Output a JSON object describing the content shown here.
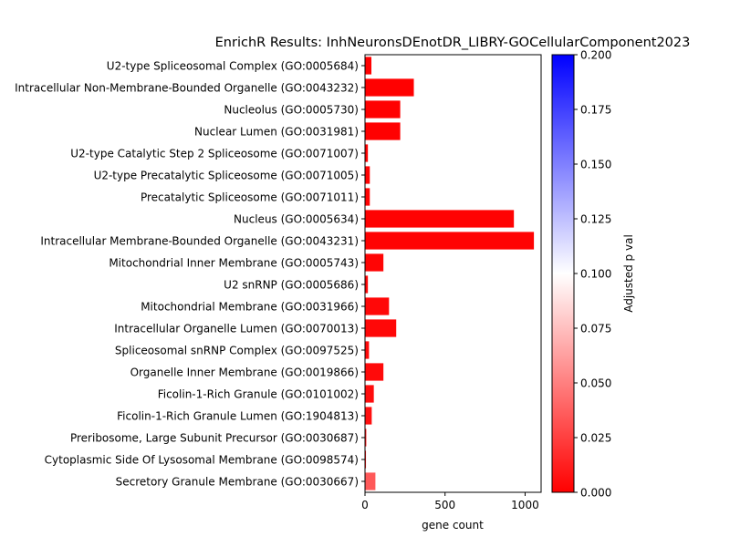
{
  "chart_data": {
    "type": "bar",
    "orientation": "horizontal",
    "title": "EnrichR Results: InhNeuronsDEnotDR_LIBRY-GOCellularComponent2023",
    "xlabel": "gene count",
    "ylabel": "",
    "xlim": [
      0,
      1100
    ],
    "xticks": [
      "0",
      "500",
      "1000"
    ],
    "grid": false,
    "categories": [
      "U2-type Spliceosomal Complex (GO:0005684)",
      "Intracellular Non-Membrane-Bounded Organelle (GO:0043232)",
      "Nucleolus (GO:0005730)",
      "Nuclear Lumen (GO:0031981)",
      "U2-type Catalytic Step 2 Spliceosome (GO:0071007)",
      "U2-type Precatalytic Spliceosome (GO:0071005)",
      "Precatalytic Spliceosome (GO:0071011)",
      "Nucleus (GO:0005634)",
      "Intracellular Membrane-Bounded Organelle (GO:0043231)",
      "Mitochondrial Inner Membrane (GO:0005743)",
      "U2 snRNP (GO:0005686)",
      "Mitochondrial Membrane (GO:0031966)",
      "Intracellular Organelle Lumen (GO:0070013)",
      "Spliceosomal snRNP Complex (GO:0097525)",
      "Organelle Inner Membrane (GO:0019866)",
      "Ficolin-1-Rich Granule (GO:0101002)",
      "Ficolin-1-Rich Granule Lumen (GO:1904813)",
      "Preribosome, Large Subunit Precursor (GO:0030687)",
      "Cytoplasmic Side Of Lysosomal Membrane (GO:0098574)",
      "Secretory Granule Membrane (GO:0030667)"
    ],
    "values": [
      40,
      305,
      220,
      220,
      18,
      30,
      30,
      930,
      1055,
      115,
      18,
      150,
      195,
      25,
      115,
      55,
      42,
      8,
      6,
      65
    ],
    "adjusted_p": [
      0.0005,
      0.0005,
      0.0005,
      0.0005,
      0.001,
      0.001,
      0.001,
      0.001,
      0.001,
      0.002,
      0.003,
      0.003,
      0.003,
      0.004,
      0.004,
      0.005,
      0.006,
      0.006,
      0.007,
      0.035
    ],
    "colorbar": {
      "label": "Adjusted p val",
      "range": [
        0,
        0.2
      ],
      "ticks": [
        "0.000",
        "0.025",
        "0.050",
        "0.075",
        "0.100",
        "0.125",
        "0.150",
        "0.175",
        "0.200"
      ],
      "colors": [
        "#ff0000",
        "#ffffff",
        "#0000ff"
      ]
    }
  }
}
